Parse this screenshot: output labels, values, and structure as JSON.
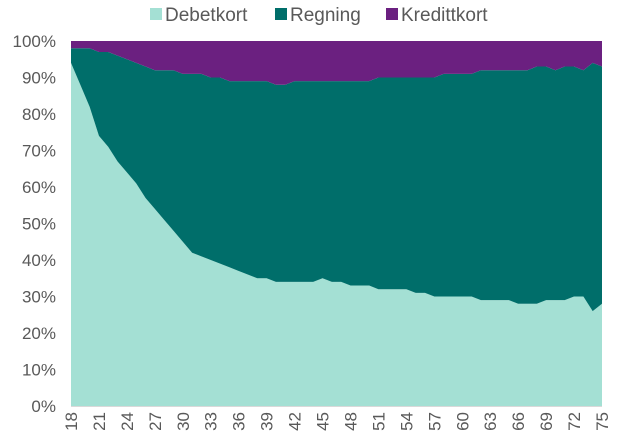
{
  "chart_data": {
    "type": "area",
    "stacked": "percent",
    "x": [
      18,
      19,
      20,
      21,
      22,
      23,
      24,
      25,
      26,
      27,
      28,
      29,
      30,
      31,
      32,
      33,
      34,
      35,
      36,
      37,
      38,
      39,
      40,
      41,
      42,
      43,
      44,
      45,
      46,
      47,
      48,
      49,
      50,
      51,
      52,
      53,
      54,
      55,
      56,
      57,
      58,
      59,
      60,
      61,
      62,
      63,
      64,
      65,
      66,
      67,
      68,
      69,
      70,
      71,
      72,
      73,
      74,
      75
    ],
    "x_tick_labels": [
      "18",
      "21",
      "24",
      "27",
      "30",
      "33",
      "36",
      "39",
      "42",
      "45",
      "48",
      "51",
      "54",
      "57",
      "60",
      "63",
      "66",
      "69",
      "72",
      "75"
    ],
    "ylim": [
      0,
      100
    ],
    "y_tick_labels": [
      "0%",
      "10%",
      "20%",
      "30%",
      "40%",
      "50%",
      "60%",
      "70%",
      "80%",
      "90%",
      "100%"
    ],
    "grid": false,
    "legend_position": "top",
    "series": [
      {
        "name": "Debetkort",
        "color": "#a4e0d4",
        "values": [
          94,
          88,
          82,
          74,
          71,
          67,
          64,
          61,
          57,
          54,
          51,
          48,
          45,
          42,
          41,
          40,
          39,
          38,
          37,
          36,
          35,
          35,
          34,
          34,
          34,
          34,
          34,
          35,
          34,
          34,
          33,
          33,
          33,
          32,
          32,
          32,
          32,
          31,
          31,
          30,
          30,
          30,
          30,
          30,
          29,
          29,
          29,
          29,
          28,
          28,
          28,
          29,
          29,
          29,
          30,
          30,
          26,
          28
        ]
      },
      {
        "name": "Regning",
        "color": "#006e6a",
        "values": [
          4,
          10,
          16,
          23,
          26,
          29,
          31,
          33,
          36,
          38,
          41,
          44,
          46,
          49,
          50,
          50,
          51,
          51,
          52,
          53,
          54,
          54,
          54,
          54,
          55,
          55,
          55,
          54,
          55,
          55,
          56,
          56,
          56,
          58,
          58,
          58,
          58,
          59,
          59,
          60,
          61,
          61,
          61,
          61,
          63,
          63,
          63,
          63,
          64,
          64,
          65,
          64,
          63,
          64,
          63,
          62,
          68,
          65
        ]
      },
      {
        "name": "Kredittkort",
        "color": "#6b2080",
        "values": [
          2,
          2,
          2,
          3,
          3,
          4,
          5,
          6,
          7,
          8,
          8,
          8,
          9,
          9,
          9,
          10,
          10,
          11,
          11,
          11,
          11,
          11,
          12,
          12,
          11,
          11,
          11,
          11,
          11,
          11,
          11,
          11,
          11,
          10,
          10,
          10,
          10,
          10,
          10,
          10,
          9,
          9,
          9,
          9,
          8,
          8,
          8,
          8,
          8,
          8,
          7,
          7,
          8,
          7,
          7,
          8,
          6,
          7
        ]
      }
    ]
  }
}
